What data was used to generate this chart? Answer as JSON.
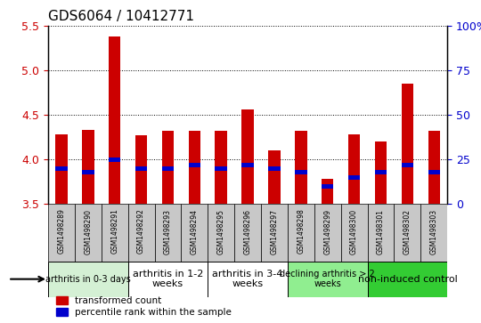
{
  "title": "GDS6064 / 10412771",
  "samples": [
    "GSM1498289",
    "GSM1498290",
    "GSM1498291",
    "GSM1498292",
    "GSM1498293",
    "GSM1498294",
    "GSM1498295",
    "GSM1498296",
    "GSM1498297",
    "GSM1498298",
    "GSM1498299",
    "GSM1498300",
    "GSM1498301",
    "GSM1498302",
    "GSM1498303"
  ],
  "transformed_count": [
    4.28,
    4.33,
    5.38,
    4.27,
    4.32,
    4.32,
    4.32,
    4.56,
    4.1,
    4.32,
    3.78,
    4.28,
    4.2,
    4.85,
    4.32
  ],
  "percentile_rank": [
    20,
    18,
    25,
    20,
    20,
    22,
    20,
    22,
    20,
    18,
    10,
    15,
    18,
    22,
    18
  ],
  "ylim": [
    3.5,
    5.5
  ],
  "yticks_left": [
    3.5,
    4.0,
    4.5,
    5.0,
    5.5
  ],
  "yticks_right": [
    0,
    25,
    50,
    75,
    100
  ],
  "groups": [
    {
      "label": "arthritis in 0-3 days",
      "start": 0,
      "end": 3,
      "color": "#d4f0d4",
      "fontsize": 7
    },
    {
      "label": "arthritis in 1-2\nweeks",
      "start": 3,
      "end": 6,
      "color": "#ffffff",
      "fontsize": 8
    },
    {
      "label": "arthritis in 3-4\nweeks",
      "start": 6,
      "end": 9,
      "color": "#ffffff",
      "fontsize": 8
    },
    {
      "label": "declining arthritis > 2\nweeks",
      "start": 9,
      "end": 12,
      "color": "#90ee90",
      "fontsize": 7
    },
    {
      "label": "non-induced control",
      "start": 12,
      "end": 15,
      "color": "#33cc33",
      "fontsize": 8
    }
  ],
  "bar_color_red": "#cc0000",
  "bar_color_blue": "#0000cc",
  "bar_width": 0.45,
  "tick_color_left": "#cc0000",
  "tick_color_right": "#0000cc",
  "sample_bg_color": "#c8c8c8",
  "legend_labels": [
    "transformed count",
    "percentile rank within the sample"
  ]
}
